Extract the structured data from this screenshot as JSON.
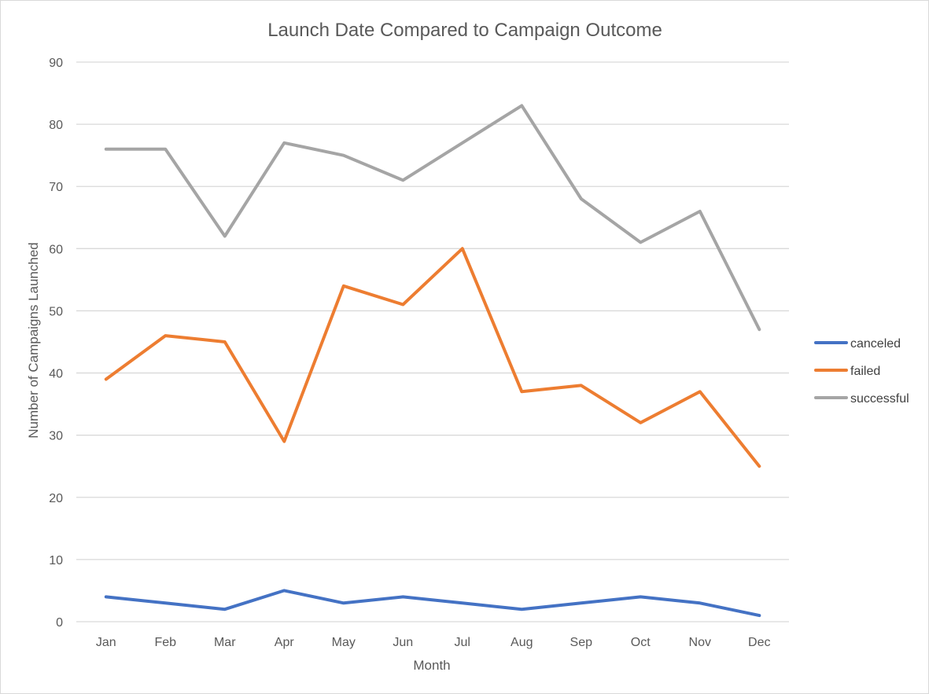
{
  "chart_data": {
    "type": "line",
    "title": "Launch Date Compared to Campaign Outcome",
    "xlabel": "Month",
    "ylabel": "Number of Campaigns Launched",
    "categories": [
      "Jan",
      "Feb",
      "Mar",
      "Apr",
      "May",
      "Jun",
      "Jul",
      "Aug",
      "Sep",
      "Oct",
      "Nov",
      "Dec"
    ],
    "ylim": [
      0,
      90
    ],
    "yticks": [
      0,
      10,
      20,
      30,
      40,
      50,
      60,
      70,
      80,
      90
    ],
    "grid": true,
    "legend_position": "right",
    "series": [
      {
        "name": "canceled",
        "color": "#4472c4",
        "values": [
          4,
          3,
          2,
          5,
          3,
          4,
          3,
          2,
          3,
          4,
          3,
          1
        ]
      },
      {
        "name": "failed",
        "color": "#ed7d31",
        "values": [
          39,
          46,
          45,
          29,
          54,
          51,
          60,
          37,
          38,
          32,
          37,
          25
        ]
      },
      {
        "name": "successful",
        "color": "#a5a5a5",
        "values": [
          76,
          76,
          62,
          77,
          75,
          71,
          77,
          83,
          68,
          61,
          66,
          47
        ]
      }
    ]
  }
}
